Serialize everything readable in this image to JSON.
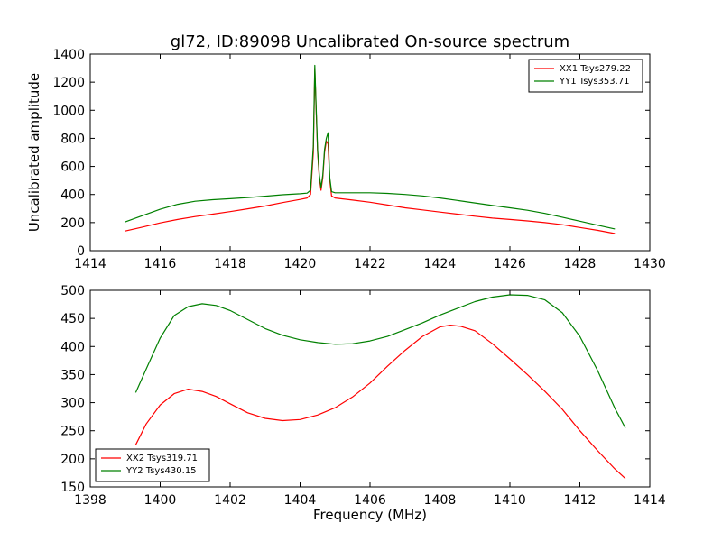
{
  "chart_data": [
    {
      "type": "line",
      "title": "gl72, ID:89098 Uncalibrated On-source spectrum",
      "xlabel": "",
      "ylabel": "Uncalibrated amplitude",
      "xlim": [
        1414,
        1430
      ],
      "ylim": [
        0,
        1400
      ],
      "xticks": [
        1414,
        1416,
        1418,
        1420,
        1422,
        1424,
        1426,
        1428,
        1430
      ],
      "yticks": [
        0,
        200,
        400,
        600,
        800,
        1000,
        1200,
        1400
      ],
      "grid": false,
      "legend_position": "top-right",
      "series": [
        {
          "name": "XX1 Tsys279.22",
          "color": "#ff0000",
          "x": [
            1415.0,
            1415.5,
            1416.0,
            1416.5,
            1417.0,
            1417.5,
            1418.0,
            1418.5,
            1419.0,
            1419.5,
            1420.0,
            1420.2,
            1420.3,
            1420.38,
            1420.42,
            1420.46,
            1420.5,
            1420.55,
            1420.6,
            1420.65,
            1420.7,
            1420.75,
            1420.8,
            1420.85,
            1420.9,
            1421.0,
            1421.5,
            1422.0,
            1422.5,
            1423.0,
            1423.5,
            1424.0,
            1424.5,
            1425.0,
            1425.5,
            1426.0,
            1426.5,
            1427.0,
            1427.5,
            1428.0,
            1428.5,
            1429.0
          ],
          "y": [
            140,
            168,
            198,
            222,
            243,
            260,
            278,
            298,
            318,
            342,
            365,
            375,
            400,
            700,
            1300,
            1000,
            700,
            520,
            430,
            520,
            700,
            780,
            760,
            500,
            390,
            375,
            360,
            345,
            325,
            305,
            290,
            275,
            260,
            245,
            232,
            222,
            212,
            200,
            185,
            165,
            145,
            122
          ]
        },
        {
          "name": "YY1 Tsys353.71",
          "color": "#008000",
          "x": [
            1415.0,
            1415.5,
            1416.0,
            1416.5,
            1417.0,
            1417.5,
            1418.0,
            1418.5,
            1419.0,
            1419.5,
            1420.0,
            1420.2,
            1420.3,
            1420.38,
            1420.42,
            1420.46,
            1420.5,
            1420.55,
            1420.6,
            1420.65,
            1420.7,
            1420.75,
            1420.8,
            1420.85,
            1420.9,
            1421.0,
            1421.5,
            1422.0,
            1422.5,
            1423.0,
            1423.5,
            1424.0,
            1424.5,
            1425.0,
            1425.5,
            1426.0,
            1426.5,
            1427.0,
            1427.5,
            1428.0,
            1428.5,
            1429.0
          ],
          "y": [
            205,
            250,
            295,
            330,
            352,
            363,
            370,
            378,
            388,
            398,
            405,
            410,
            430,
            750,
            1320,
            1020,
            720,
            540,
            450,
            540,
            720,
            800,
            840,
            520,
            420,
            412,
            412,
            412,
            408,
            400,
            390,
            375,
            358,
            340,
            322,
            305,
            288,
            265,
            238,
            210,
            182,
            155
          ]
        }
      ]
    },
    {
      "type": "line",
      "title": "",
      "xlabel": "Frequency (MHz)",
      "ylabel": "",
      "xlim": [
        1398,
        1414
      ],
      "ylim": [
        150,
        500
      ],
      "xticks": [
        1398,
        1400,
        1402,
        1404,
        1406,
        1408,
        1410,
        1412,
        1414
      ],
      "yticks": [
        150,
        200,
        250,
        300,
        350,
        400,
        450,
        500
      ],
      "grid": false,
      "legend_position": "bottom-left",
      "series": [
        {
          "name": "XX2 Tsys319.71",
          "color": "#ff0000",
          "x": [
            1399.3,
            1399.6,
            1400.0,
            1400.4,
            1400.8,
            1401.2,
            1401.6,
            1402.0,
            1402.5,
            1403.0,
            1403.5,
            1404.0,
            1404.5,
            1405.0,
            1405.5,
            1406.0,
            1406.5,
            1407.0,
            1407.5,
            1408.0,
            1408.3,
            1408.6,
            1409.0,
            1409.5,
            1410.0,
            1410.5,
            1411.0,
            1411.5,
            1412.0,
            1412.5,
            1413.0,
            1413.3
          ],
          "y": [
            225,
            262,
            296,
            316,
            324,
            320,
            311,
            298,
            282,
            272,
            268,
            270,
            278,
            291,
            310,
            335,
            365,
            393,
            418,
            435,
            438,
            436,
            428,
            405,
            378,
            350,
            320,
            288,
            250,
            215,
            182,
            165
          ]
        },
        {
          "name": "YY2 Tsys430.15",
          "color": "#008000",
          "x": [
            1399.3,
            1399.6,
            1400.0,
            1400.4,
            1400.8,
            1401.2,
            1401.6,
            1402.0,
            1402.5,
            1403.0,
            1403.5,
            1404.0,
            1404.5,
            1405.0,
            1405.5,
            1406.0,
            1406.5,
            1407.0,
            1407.5,
            1408.0,
            1408.5,
            1409.0,
            1409.5,
            1410.0,
            1410.5,
            1411.0,
            1411.5,
            1412.0,
            1412.5,
            1413.0,
            1413.3
          ],
          "y": [
            318,
            360,
            415,
            455,
            471,
            476,
            473,
            464,
            448,
            432,
            420,
            412,
            407,
            404,
            405,
            410,
            418,
            430,
            442,
            456,
            468,
            480,
            488,
            492,
            491,
            483,
            460,
            418,
            358,
            290,
            255
          ]
        }
      ]
    }
  ]
}
